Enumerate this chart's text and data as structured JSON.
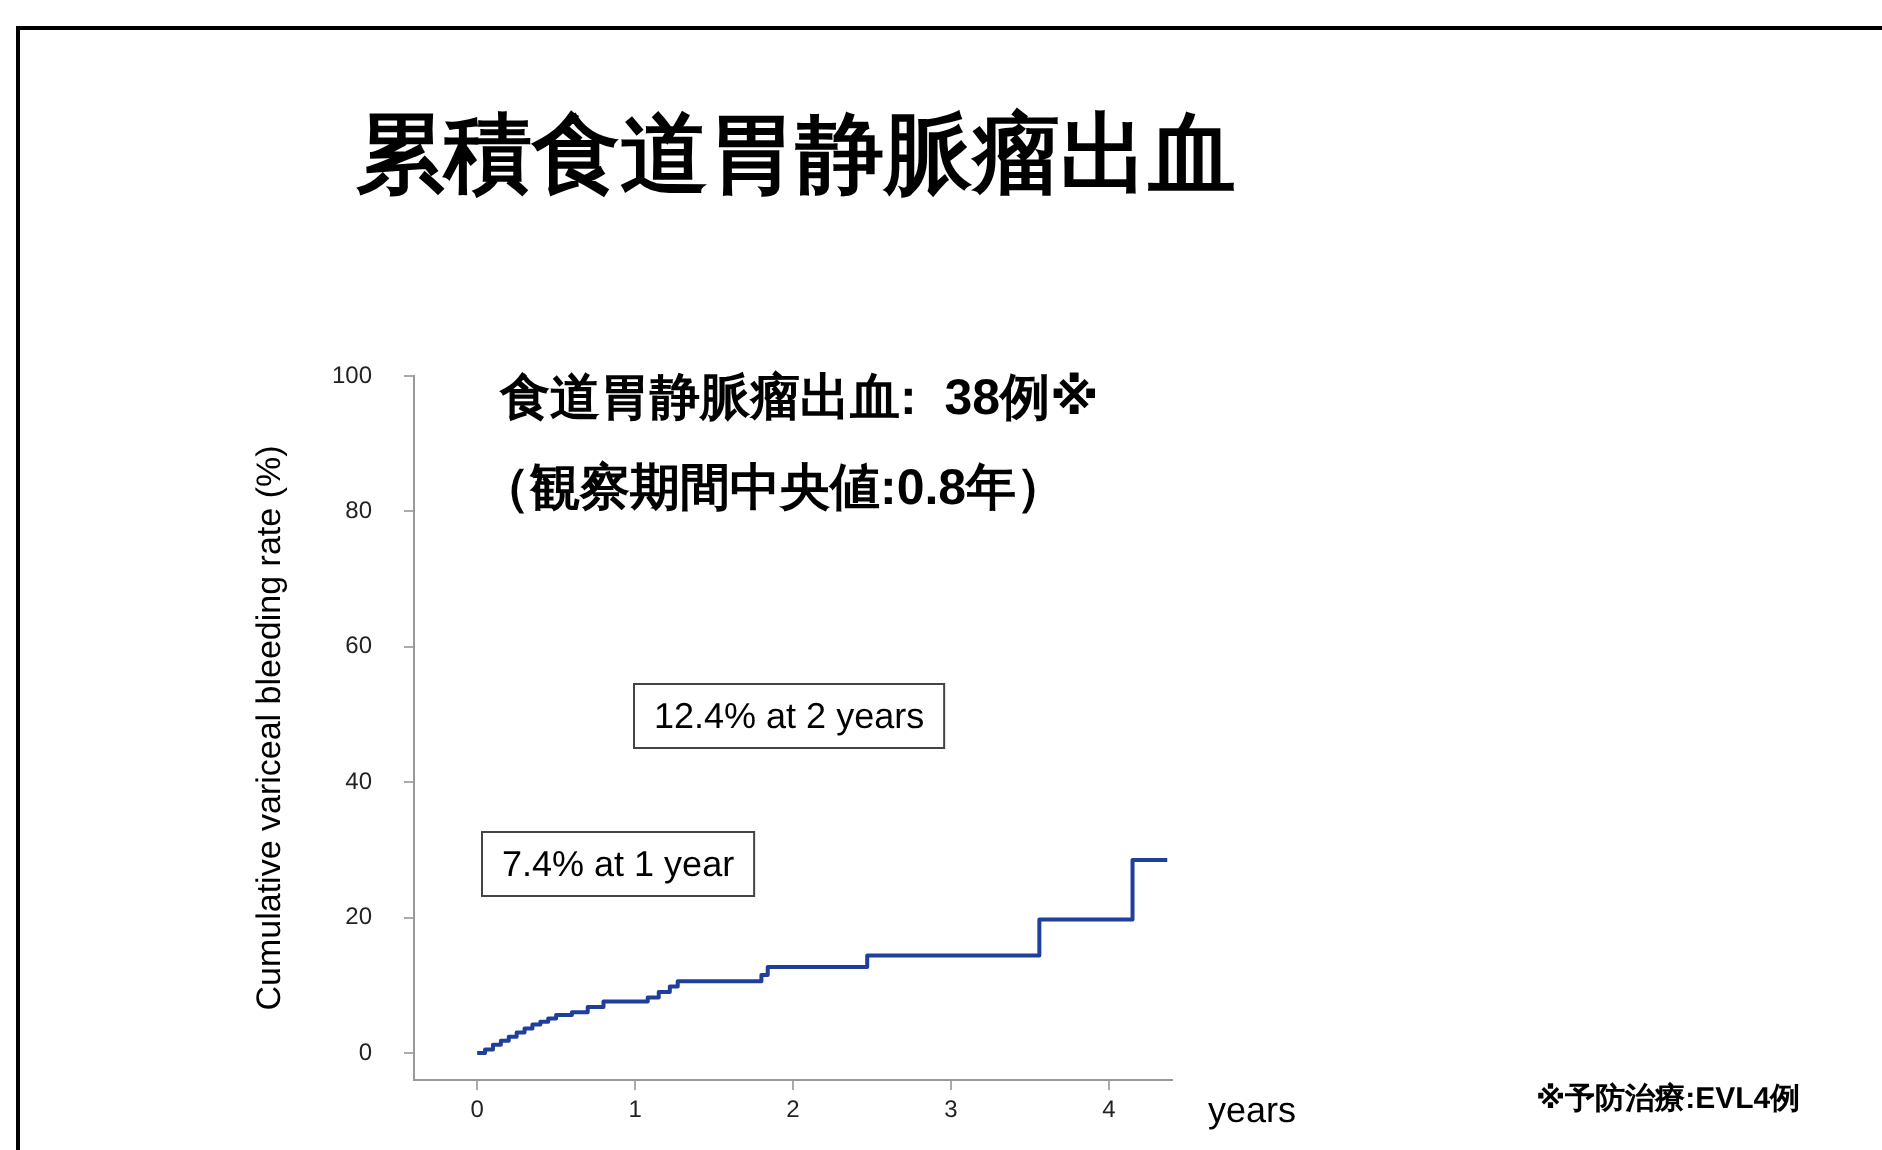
{
  "chart_data": {
    "type": "step",
    "title": "累積食道胃静脈瘤出血",
    "xlabel": "years",
    "ylabel": "Cumulative variceal bleeding rate (%)",
    "annotations": [
      "食道胃静脈瘤出血:  38例※",
      "（観察期間中央値:0.8年）",
      "12.4% at 2 years",
      "7.4% at 1 year",
      "※予防治療:EVL4例"
    ],
    "series": [
      {
        "color": "#1f3f9a",
        "x": [
          0,
          0.05,
          0.1,
          0.15,
          0.2,
          0.25,
          0.3,
          0.35,
          0.4,
          0.45,
          0.5,
          0.6,
          0.7,
          0.8,
          1.08,
          1.15,
          1.22,
          1.27,
          1.8,
          1.84,
          2.47,
          3.56,
          4.15,
          4.37
        ],
        "values": [
          0,
          0.5,
          1.2,
          1.8,
          2.4,
          3.0,
          3.6,
          4.2,
          4.6,
          5.1,
          5.6,
          6.0,
          6.8,
          7.6,
          8.2,
          9.0,
          9.8,
          10.6,
          11.5,
          12.7,
          14.4,
          19.7,
          28.5,
          28.5
        ]
      }
    ],
    "xlim": [
      -0.4,
      4.4
    ],
    "xticks": [
      0,
      1,
      2,
      3,
      4
    ],
    "ylim": [
      -4,
      100
    ],
    "yticks": [
      0,
      20,
      40,
      60,
      80,
      100
    ],
    "grid": false,
    "legend": false,
    "marker": "none",
    "line_style": "solid"
  }
}
